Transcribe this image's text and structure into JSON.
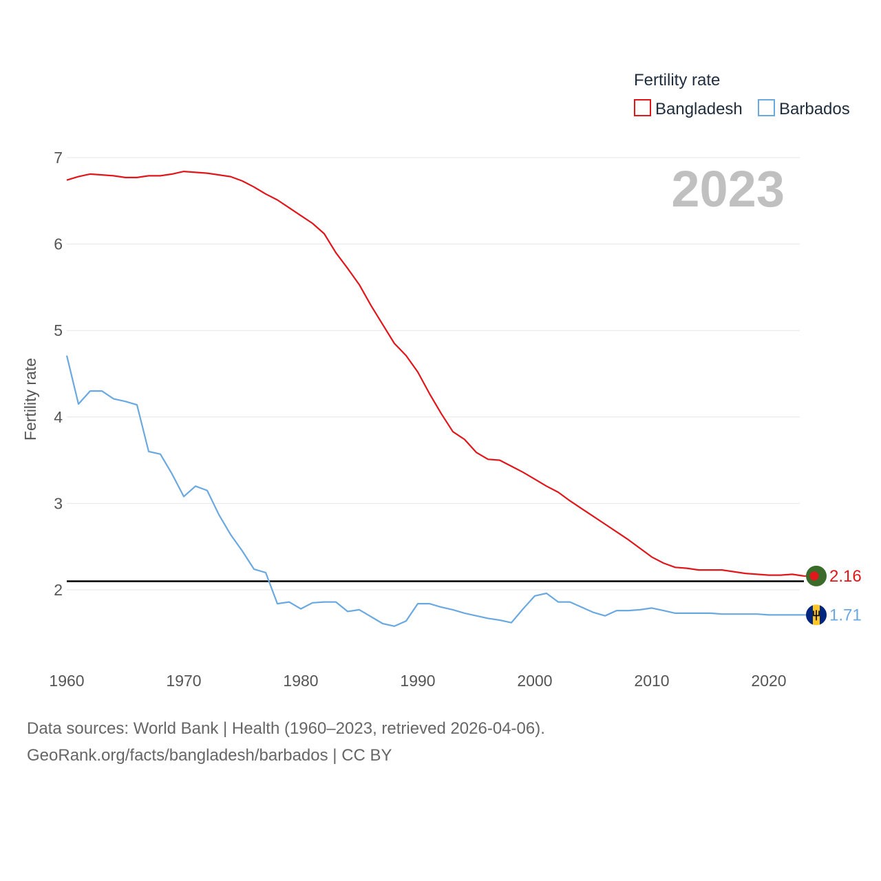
{
  "chart_data": {
    "type": "line",
    "title": "2023",
    "ylabel": "Fertility rate",
    "xlabel": "",
    "legend_title": "Fertility rate",
    "legend_position": "top-right",
    "grid": true,
    "xlim": [
      1960,
      2023
    ],
    "ylim": [
      1.2,
      7.0
    ],
    "x_ticks": [
      1960,
      1970,
      1980,
      1990,
      2000,
      2010,
      2020
    ],
    "y_ticks": [
      2,
      3,
      4,
      5,
      6,
      7
    ],
    "reference_line": 2.1,
    "x": [
      1960,
      1961,
      1962,
      1963,
      1964,
      1965,
      1966,
      1967,
      1968,
      1969,
      1970,
      1971,
      1972,
      1973,
      1974,
      1975,
      1976,
      1977,
      1978,
      1979,
      1980,
      1981,
      1982,
      1983,
      1984,
      1985,
      1986,
      1987,
      1988,
      1989,
      1990,
      1991,
      1992,
      1993,
      1994,
      1995,
      1996,
      1997,
      1998,
      1999,
      2000,
      2001,
      2002,
      2003,
      2004,
      2005,
      2006,
      2007,
      2008,
      2009,
      2010,
      2011,
      2012,
      2013,
      2014,
      2015,
      2016,
      2017,
      2018,
      2019,
      2020,
      2021,
      2022,
      2023
    ],
    "series": [
      {
        "name": "Bangladesh",
        "color": "#e0161b",
        "end_label": "2.16",
        "flag": "bangladesh-flag-icon",
        "values": [
          6.74,
          6.78,
          6.81,
          6.8,
          6.79,
          6.77,
          6.77,
          6.79,
          6.79,
          6.81,
          6.84,
          6.83,
          6.82,
          6.8,
          6.78,
          6.73,
          6.66,
          6.58,
          6.51,
          6.42,
          6.33,
          6.24,
          6.12,
          5.9,
          5.72,
          5.53,
          5.29,
          5.07,
          4.85,
          4.71,
          4.52,
          4.27,
          4.04,
          3.83,
          3.74,
          3.59,
          3.51,
          3.5,
          3.43,
          3.36,
          3.28,
          3.2,
          3.13,
          3.03,
          2.94,
          2.85,
          2.76,
          2.67,
          2.58,
          2.48,
          2.38,
          2.31,
          2.26,
          2.25,
          2.23,
          2.23,
          2.23,
          2.21,
          2.19,
          2.18,
          2.17,
          2.17,
          2.18,
          2.16
        ]
      },
      {
        "name": "Barbados",
        "color": "#6aa8e0",
        "end_label": "1.71",
        "flag": "barbados-flag-icon",
        "values": [
          4.71,
          4.15,
          4.3,
          4.3,
          4.21,
          4.18,
          4.14,
          3.6,
          3.57,
          3.34,
          3.08,
          3.2,
          3.15,
          2.87,
          2.64,
          2.45,
          2.24,
          2.2,
          1.84,
          1.86,
          1.78,
          1.85,
          1.86,
          1.86,
          1.75,
          1.77,
          1.69,
          1.61,
          1.58,
          1.64,
          1.84,
          1.84,
          1.8,
          1.77,
          1.73,
          1.7,
          1.67,
          1.65,
          1.62,
          1.78,
          1.93,
          1.96,
          1.86,
          1.86,
          1.8,
          1.74,
          1.7,
          1.76,
          1.76,
          1.77,
          1.79,
          1.76,
          1.73,
          1.73,
          1.73,
          1.73,
          1.72,
          1.72,
          1.72,
          1.72,
          1.71,
          1.71,
          1.71,
          1.71
        ]
      }
    ]
  },
  "footer": {
    "line1": "Data sources: World Bank | Health (1960–2023, retrieved 2026-04-06).",
    "line2": "GeoRank.org/facts/bangladesh/barbados | CC BY"
  }
}
